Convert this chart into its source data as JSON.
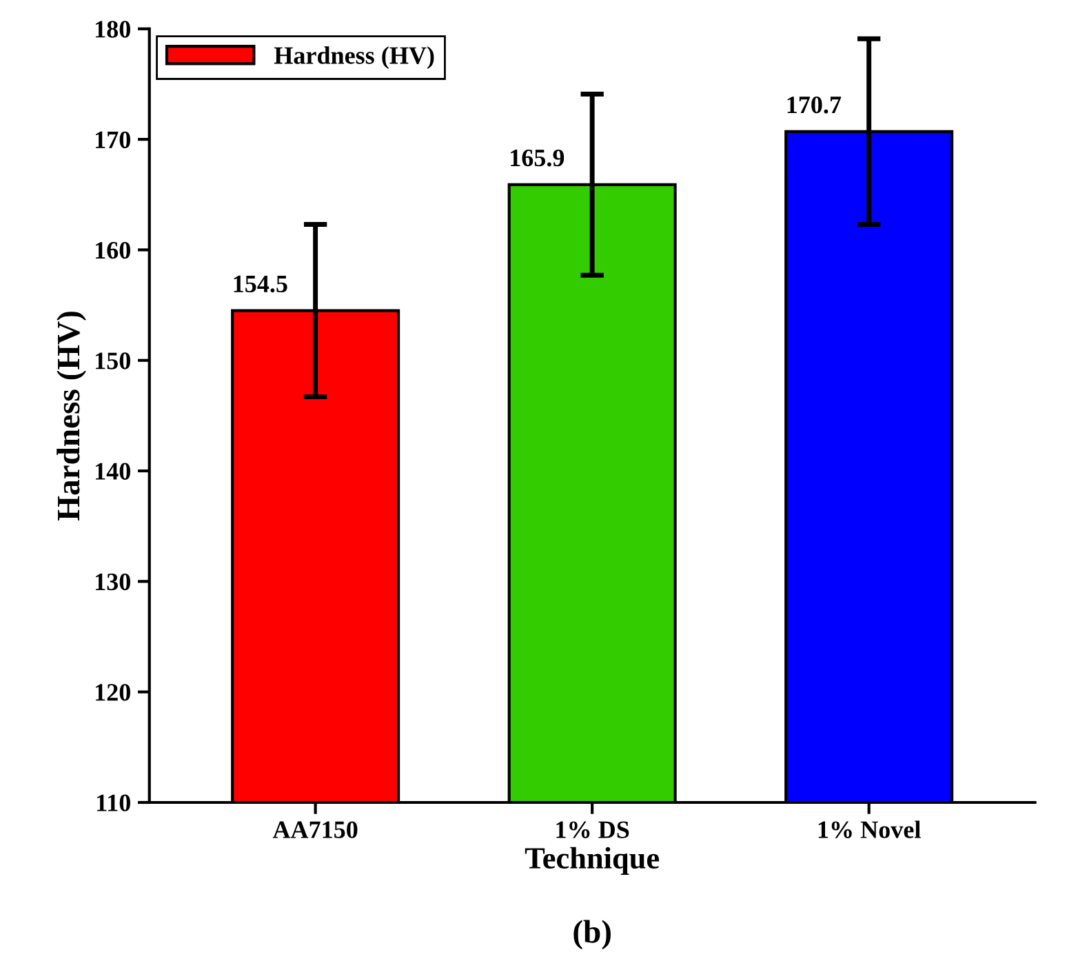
{
  "chart_data": {
    "type": "bar",
    "xlabel": "Technique",
    "ylabel": "Hardness (HV)",
    "categories": [
      "AA7150",
      "1% DS",
      "1% Novel"
    ],
    "series": [
      {
        "name": "Hardness (HV)",
        "color": "#ff0000",
        "colors": [
          "#ff0000",
          "#33cc00",
          "#0000ff"
        ],
        "values": [
          154.5,
          165.9,
          170.7
        ],
        "errors": [
          7.8,
          8.2,
          8.4
        ]
      }
    ],
    "data_labels": true,
    "ylim": [
      110,
      180
    ],
    "yticks": [
      110,
      120,
      130,
      140,
      150,
      160,
      170,
      180
    ],
    "grid": false,
    "legend": "top left",
    "annotations": [
      "(b)"
    ]
  }
}
